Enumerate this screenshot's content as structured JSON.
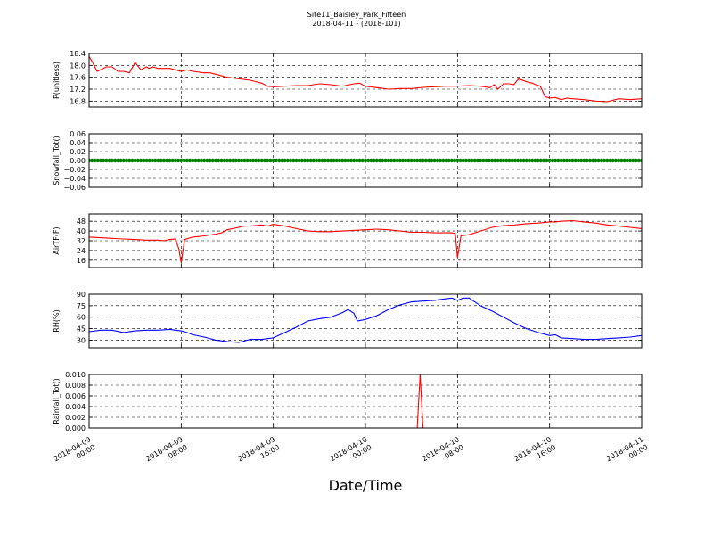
{
  "title": {
    "line1": "Site11_Baisley_Park_Fifteen",
    "line2": "2018-04-11 - (2018-101)"
  },
  "xlabel": "Date/Time",
  "x_ticks": [
    {
      "t": 0,
      "line1": "2018-04-09",
      "line2": "00:00"
    },
    {
      "t": 8,
      "line1": "2018-04-09",
      "line2": "08:00"
    },
    {
      "t": 16,
      "line1": "2018-04-09",
      "line2": "16:00"
    },
    {
      "t": 24,
      "line1": "2018-04-10",
      "line2": "00:00"
    },
    {
      "t": 32,
      "line1": "2018-04-10",
      "line2": "08:00"
    },
    {
      "t": 40,
      "line1": "2018-04-10",
      "line2": "16:00"
    },
    {
      "t": 48,
      "line1": "2018-04-11",
      "line2": "00:00"
    }
  ],
  "chart_data": [
    {
      "type": "line",
      "ylabel": "P(unitless)",
      "ylim": [
        16.6,
        18.4
      ],
      "yticks": [
        "16.8",
        "17.2",
        "17.6",
        "18.0",
        "18.4"
      ],
      "grid": true,
      "color": "#ff0000",
      "series": [
        {
          "x": [
            0,
            0.3,
            0.7,
            1.0,
            1.5,
            2.0,
            2.5,
            3.0,
            3.5,
            4.0,
            4.5,
            5.0,
            5.2,
            5.5,
            6.0,
            6.5,
            7.0,
            8.0,
            8.5,
            9.0,
            10.0,
            10.5,
            11.0,
            12.0,
            13.0,
            14.0,
            15.0,
            15.5,
            16.0,
            17.0,
            18.0,
            19.0,
            20.0,
            21.0,
            22.0,
            23.0,
            23.5,
            24.0,
            25.0,
            26.0,
            27.0,
            28.0,
            29.0,
            30.0,
            31.0,
            32.0,
            33.0,
            34.0,
            34.8,
            35.2,
            35.5,
            36.0,
            36.5,
            36.9,
            37.3,
            38.0,
            38.5,
            38.8,
            39.2,
            39.6,
            40.0,
            40.5,
            41.0,
            41.5,
            42.0,
            43.0,
            44.0,
            45.0,
            46.0,
            47.0,
            48.0
          ],
          "y": [
            18.3,
            18.1,
            17.8,
            17.85,
            17.95,
            17.95,
            17.8,
            17.8,
            17.75,
            18.1,
            17.85,
            17.95,
            17.9,
            17.95,
            17.9,
            17.9,
            17.9,
            17.8,
            17.85,
            17.8,
            17.75,
            17.75,
            17.7,
            17.6,
            17.55,
            17.5,
            17.4,
            17.3,
            17.28,
            17.3,
            17.32,
            17.32,
            17.38,
            17.35,
            17.3,
            17.38,
            17.4,
            17.3,
            17.25,
            17.2,
            17.22,
            17.22,
            17.26,
            17.28,
            17.3,
            17.3,
            17.32,
            17.3,
            17.25,
            17.35,
            17.2,
            17.38,
            17.38,
            17.35,
            17.55,
            17.45,
            17.4,
            17.35,
            17.3,
            16.95,
            16.9,
            16.92,
            16.85,
            16.9,
            16.88,
            16.85,
            16.8,
            16.78,
            16.88,
            16.85,
            16.88
          ]
        }
      ]
    },
    {
      "type": "scatter",
      "ylabel": "Snowfall_Tot()",
      "ylim": [
        -0.06,
        0.06
      ],
      "yticks": [
        "−0.06",
        "−0.04",
        "−0.02",
        "0.00",
        "0.02",
        "0.04",
        "0.06"
      ],
      "grid": true,
      "color": "#008000",
      "series": [
        {
          "x_range": [
            0,
            48
          ],
          "constant_y": 0.0
        }
      ]
    },
    {
      "type": "line",
      "ylabel": "AirTF(F)",
      "ylim": [
        10,
        54
      ],
      "yticks": [
        "16",
        "24",
        "32",
        "40",
        "48"
      ],
      "grid": true,
      "color": "#ff0000",
      "series": [
        {
          "x": [
            0,
            1,
            2,
            3,
            4,
            5,
            6,
            6.5,
            7,
            7.5,
            7.8,
            8.0,
            8.3,
            9.0,
            10.0,
            11.0,
            11.5,
            12.0,
            13.0,
            13.5,
            14.0,
            15.0,
            15.5,
            16.0,
            17.0,
            18.0,
            19.0,
            20.0,
            21.0,
            22.0,
            23.0,
            24.0,
            25.0,
            26.0,
            27.0,
            28.0,
            29.0,
            30.0,
            31.0,
            31.5,
            31.8,
            32.0,
            32.3,
            33.0,
            34.0,
            35.0,
            36.0,
            37.0,
            38.0,
            39.0,
            40.0,
            40.5,
            41.0,
            42.0,
            43.0,
            44.0,
            45.0,
            46.0,
            47.0,
            48.0
          ],
          "y": [
            35,
            34.5,
            34,
            33.5,
            33,
            32.5,
            32.5,
            32,
            33,
            33.5,
            25,
            14,
            33,
            35,
            36,
            37.5,
            38.5,
            41,
            43,
            44,
            44,
            45,
            44,
            45.5,
            44,
            42,
            40,
            39.5,
            39.5,
            40,
            40.5,
            41,
            41.5,
            41,
            40,
            39,
            39,
            38.5,
            38.5,
            38.5,
            38,
            18,
            36,
            37,
            40,
            43,
            44.5,
            45,
            46,
            46.5,
            47.5,
            47.5,
            48,
            48.5,
            47.5,
            46.5,
            45,
            44,
            43,
            42
          ]
        }
      ]
    },
    {
      "type": "line",
      "ylabel": "RH(%)",
      "ylim": [
        20,
        90
      ],
      "yticks": [
        "30",
        "45",
        "60",
        "75",
        "90"
      ],
      "grid": true,
      "color": "#0000ff",
      "series": [
        {
          "x": [
            0,
            1,
            2,
            3,
            4,
            5,
            6,
            7,
            7.5,
            8.0,
            8.5,
            9.0,
            10.0,
            11.0,
            12.0,
            13.0,
            14.0,
            15.0,
            15.5,
            16.0,
            17.0,
            18.0,
            19.0,
            20.0,
            21.0,
            22.0,
            22.5,
            23.0,
            23.3,
            24.0,
            25.0,
            26.0,
            27.0,
            28.0,
            29.0,
            30.0,
            31.0,
            31.5,
            32.0,
            32.5,
            33.0,
            34.0,
            35.0,
            36.0,
            37.0,
            38.0,
            39.0,
            40.0,
            40.5,
            41.0,
            42.0,
            43.0,
            44.0,
            45.0,
            46.0,
            47.0,
            48.0
          ],
          "y": [
            41,
            43,
            43,
            40,
            42,
            43,
            43,
            44,
            43,
            42,
            40,
            37,
            34,
            30,
            28,
            27,
            31,
            31,
            32,
            33,
            40,
            47,
            55,
            58,
            60,
            66,
            70,
            65,
            55,
            57,
            62,
            70,
            76,
            80,
            81,
            82,
            84,
            85,
            82,
            85,
            85,
            75,
            68,
            60,
            52,
            45,
            40,
            36,
            37,
            33,
            32,
            31,
            31,
            32,
            33,
            34,
            36
          ]
        }
      ]
    },
    {
      "type": "line",
      "ylabel": "Rainfall_Tot()",
      "ylim": [
        0,
        0.01
      ],
      "yticks": [
        "0.000",
        "0.002",
        "0.004",
        "0.006",
        "0.008",
        "0.010"
      ],
      "grid": true,
      "color": "#ff0000",
      "series": [
        {
          "x": [
            0,
            28.5,
            28.75,
            29.0,
            48
          ],
          "y": [
            0,
            0,
            0.01,
            0,
            0
          ]
        }
      ]
    }
  ]
}
